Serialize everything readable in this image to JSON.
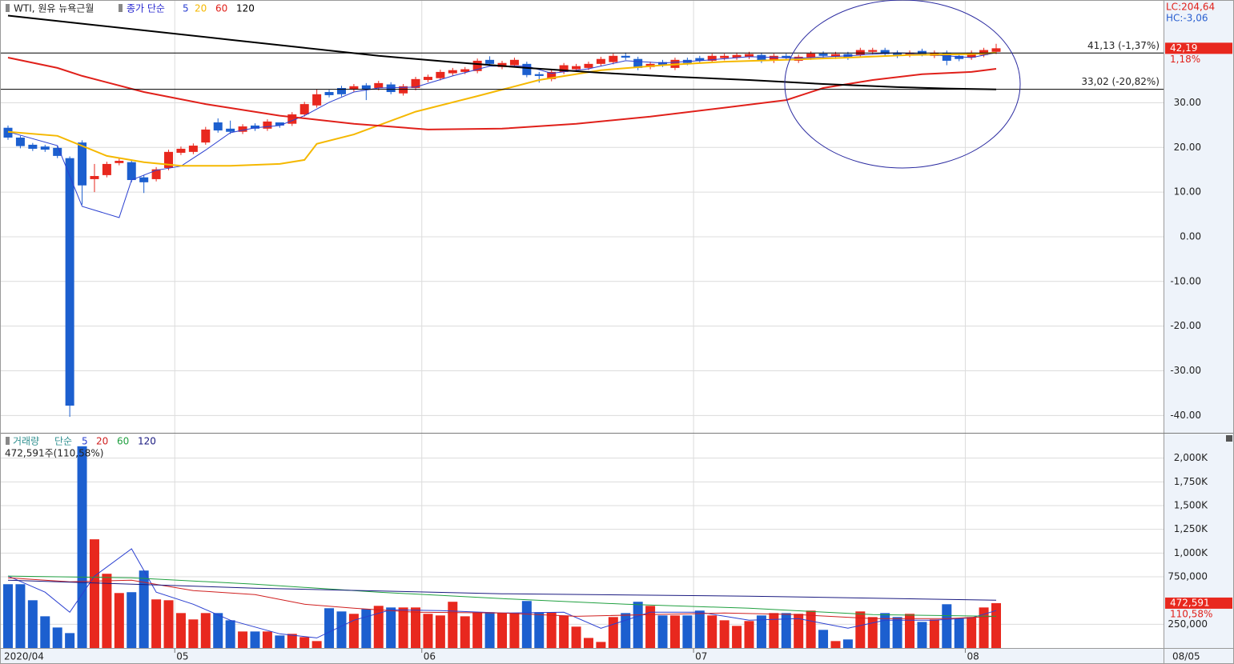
{
  "chart_data": [
    {
      "type": "candlestick",
      "title": "WTI, 원유 뉴욕근월",
      "indicator_label": "종가 단순",
      "categories": [
        "2020/04",
        null,
        null,
        null,
        null,
        null,
        null,
        null,
        null,
        null,
        null,
        null,
        null,
        null,
        "05",
        null,
        null,
        null,
        null,
        null,
        null,
        null,
        null,
        null,
        null,
        null,
        null,
        null,
        null,
        null,
        null,
        null,
        null,
        null,
        "06",
        null,
        null,
        null,
        null,
        null,
        null,
        null,
        null,
        null,
        null,
        null,
        null,
        null,
        null,
        null,
        null,
        null,
        null,
        null,
        null,
        null,
        "07",
        null,
        null,
        null,
        null,
        null,
        null,
        null,
        null,
        null,
        null,
        null,
        null,
        null,
        null,
        null,
        null,
        null,
        null,
        null,
        null,
        null,
        "08",
        null,
        null
      ],
      "open": [
        24.4,
        22.2,
        20.6,
        20.2,
        19.9,
        17.6,
        21.1,
        12.9,
        13.8,
        16.5,
        16.7,
        13.3,
        12.9,
        15.4,
        18.8,
        19.0,
        21.1,
        25.6,
        24.2,
        23.5,
        24.9,
        24.2,
        25.6,
        25.3,
        27.4,
        29.4,
        32.4,
        33.3,
        33.0,
        33.9,
        33.3,
        34.1,
        32.1,
        33.3,
        35.1,
        35.5,
        36.6,
        36.9,
        37.1,
        39.6,
        38.0,
        38.4,
        38.7,
        36.4,
        35.3,
        36.9,
        37.5,
        37.8,
        38.7,
        39.1,
        40.5,
        39.8,
        38.0,
        39.1,
        37.8,
        39.6,
        40.0,
        39.4,
        40.0,
        40.1,
        40.3,
        40.7,
        39.4,
        40.5,
        39.4,
        40.1,
        41.0,
        40.3,
        40.9,
        40.7,
        41.4,
        41.8,
        41.2,
        40.7,
        41.6,
        40.5,
        41.2,
        40.5,
        40.1,
        40.7,
        41.4
      ],
      "high": [
        24.9,
        22.6,
        21.0,
        20.6,
        20.4,
        18.0,
        21.6,
        16.3,
        16.8,
        17.5,
        17.2,
        13.8,
        15.6,
        19.5,
        20.2,
        20.9,
        24.6,
        26.5,
        26.0,
        25.2,
        25.4,
        26.3,
        25.4,
        27.9,
        30.2,
        33.0,
        32.9,
        33.8,
        34.2,
        34.4,
        34.9,
        34.6,
        34.2,
        35.8,
        36.3,
        37.4,
        37.8,
        38.0,
        39.9,
        40.4,
        39.4,
        40.1,
        39.2,
        36.9,
        37.4,
        38.9,
        38.7,
        39.2,
        40.3,
        41.0,
        41.2,
        40.3,
        39.2,
        39.6,
        40.1,
        40.1,
        40.5,
        41.0,
        41.0,
        41.2,
        41.4,
        41.2,
        41.0,
        41.0,
        40.8,
        41.5,
        41.5,
        41.4,
        41.4,
        42.3,
        42.3,
        42.3,
        41.7,
        41.7,
        42.1,
        41.7,
        41.7,
        41.0,
        41.7,
        42.3,
        43.2
      ],
      "low": [
        21.7,
        19.8,
        19.2,
        19.0,
        17.6,
        -40.3,
        7.2,
        10.0,
        13.3,
        16.0,
        12.2,
        9.8,
        12.4,
        14.9,
        18.3,
        18.5,
        20.6,
        23.3,
        23.0,
        23.0,
        23.7,
        23.7,
        24.4,
        24.8,
        26.9,
        28.9,
        31.2,
        31.4,
        32.5,
        30.6,
        32.8,
        31.9,
        31.6,
        32.8,
        34.6,
        35.0,
        36.1,
        36.4,
        36.6,
        38.2,
        37.5,
        37.9,
        35.7,
        34.5,
        34.8,
        36.4,
        37.0,
        37.3,
        38.2,
        38.6,
        39.6,
        37.3,
        37.5,
        38.0,
        37.3,
        38.4,
        38.9,
        38.9,
        39.5,
        39.6,
        39.8,
        38.9,
        38.9,
        39.5,
        38.9,
        39.6,
        40.0,
        39.8,
        39.6,
        40.2,
        40.9,
        40.4,
        40.0,
        40.2,
        40.4,
        40.0,
        38.4,
        39.3,
        39.6,
        40.2,
        40.9
      ],
      "close": [
        22.2,
        20.3,
        19.7,
        19.5,
        18.1,
        -37.8,
        11.5,
        13.6,
        16.3,
        17.0,
        12.7,
        12.2,
        15.1,
        19.0,
        19.7,
        20.4,
        24.0,
        23.8,
        23.5,
        24.7,
        24.2,
        25.8,
        24.9,
        27.4,
        29.7,
        31.9,
        31.7,
        31.9,
        33.7,
        33.0,
        34.4,
        32.4,
        33.7,
        35.3,
        35.8,
        36.9,
        37.3,
        37.5,
        39.4,
        38.7,
        38.9,
        39.6,
        36.2,
        36.0,
        36.9,
        38.4,
        38.2,
        38.7,
        39.8,
        40.5,
        40.1,
        37.8,
        38.7,
        38.5,
        39.6,
        38.9,
        39.4,
        40.5,
        40.5,
        40.7,
        40.9,
        39.4,
        40.5,
        40.0,
        40.3,
        41.0,
        40.5,
        40.9,
        40.1,
        41.8,
        41.8,
        40.9,
        40.5,
        41.2,
        40.9,
        41.2,
        39.4,
        39.8,
        41.2,
        41.8,
        42.19
      ],
      "up_color": "#e8281e",
      "down_color": "#1c5fcf",
      "series": [
        {
          "name": "5",
          "color": "#2a3fd0",
          "width": 1,
          "x": [
            0,
            4,
            6,
            9,
            10,
            12,
            14,
            16,
            18,
            20,
            22,
            24,
            26,
            28,
            30,
            33,
            36,
            39,
            42,
            44,
            47,
            50,
            53,
            56,
            60,
            64,
            68,
            72,
            76,
            78,
            80
          ],
          "values": [
            23.5,
            20.4,
            6.8,
            4.3,
            12.7,
            14.9,
            15.8,
            19.4,
            23.3,
            24.4,
            24.9,
            27.1,
            30.1,
            32.4,
            33.3,
            33.5,
            36.0,
            38.2,
            38.2,
            36.6,
            37.6,
            39.4,
            38.9,
            39.4,
            40.3,
            40.0,
            40.5,
            41.2,
            40.5,
            40.1,
            41.2
          ]
        },
        {
          "name": "20",
          "color": "#f5b800",
          "width": 2,
          "x": [
            0,
            4,
            8,
            11,
            14,
            18,
            22,
            24,
            25,
            28,
            33,
            38,
            43,
            48,
            53,
            58,
            63,
            68,
            73,
            78,
            80
          ],
          "values": [
            23.5,
            22.6,
            18.1,
            16.7,
            15.9,
            15.9,
            16.3,
            17.2,
            20.8,
            22.9,
            28.0,
            31.5,
            35.1,
            37.3,
            38.4,
            39.2,
            39.6,
            40.1,
            40.7,
            40.9,
            41.2
          ]
        },
        {
          "name": "60",
          "color": "#e0201a",
          "width": 2,
          "x": [
            0,
            4,
            6,
            11,
            16,
            22,
            28,
            34,
            40,
            46,
            52,
            58,
            63,
            66,
            70,
            74,
            78,
            80
          ],
          "values": [
            40.1,
            37.8,
            36.0,
            32.4,
            29.7,
            27.1,
            25.3,
            24.0,
            24.2,
            25.3,
            26.9,
            28.9,
            30.6,
            33.3,
            35.1,
            36.4,
            36.9,
            37.6
          ]
        },
        {
          "name": "120",
          "color": "#000000",
          "width": 2,
          "x": [
            0,
            6,
            12,
            18,
            24,
            30,
            36,
            42,
            48,
            54,
            60,
            66,
            72,
            76,
            80
          ],
          "values": [
            49.5,
            47.7,
            45.9,
            44.1,
            42.3,
            40.5,
            39.1,
            37.8,
            36.7,
            35.8,
            35.1,
            34.2,
            33.5,
            33.2,
            33.0
          ]
        }
      ],
      "ylim": [
        -43.7,
        53.0
      ],
      "yticks": [
        {
          "value": -40,
          "label": "-40.00"
        },
        {
          "value": -30,
          "label": "-30.00"
        },
        {
          "value": -20,
          "label": "-20.00"
        },
        {
          "value": -10,
          "label": "-10.00"
        },
        {
          "value": 0,
          "label": "0.00"
        },
        {
          "value": 10,
          "label": "10.00"
        },
        {
          "value": 20,
          "label": "20.00"
        },
        {
          "value": 30,
          "label": "30.00"
        }
      ],
      "grid": true,
      "ref_lines": [
        {
          "value": 41.13,
          "label": "41,13 (-1,37%)"
        },
        {
          "value": 33.02,
          "label": "33,02 (-20,82%)"
        }
      ],
      "last_value": {
        "value": 42.19,
        "label": "42,19"
      },
      "change_label": "1,18%",
      "lc_label": "LC:204,64",
      "hc_label": "HC:-3,06",
      "date_label": "08/05"
    },
    {
      "type": "bar",
      "title": "거래량",
      "indicator_label": "단순",
      "info_label": "472,591주(110,58%)",
      "values": [
        672000,
        672000,
        503000,
        334000,
        216000,
        157000,
        2125000,
        1145000,
        782000,
        579000,
        588000,
        816000,
        512000,
        503000,
        368000,
        301000,
        368000,
        368000,
        292000,
        174000,
        174000,
        174000,
        132000,
        149000,
        115000,
        73000,
        419000,
        385000,
        360000,
        410000,
        444000,
        427000,
        427000,
        427000,
        360000,
        343000,
        487000,
        334000,
        377000,
        377000,
        368000,
        368000,
        495000,
        377000,
        377000,
        343000,
        225000,
        106000,
        64000,
        326000,
        368000,
        487000,
        444000,
        343000,
        343000,
        343000,
        394000,
        343000,
        292000,
        233000,
        284000,
        343000,
        368000,
        368000,
        360000,
        394000,
        191000,
        73000,
        90000,
        385000,
        326000,
        368000,
        326000,
        360000,
        275000,
        301000,
        461000,
        309000,
        326000,
        427000,
        472591
      ],
      "up_color": "#e8281e",
      "down_color": "#1c5fcf",
      "series": [
        {
          "name": "5",
          "color": "#2a3fd0",
          "x": [
            0,
            3,
            5,
            7,
            10,
            12,
            15,
            18,
            22,
            25,
            28,
            31,
            35,
            40,
            45,
            48,
            52,
            56,
            60,
            64,
            68,
            71,
            75,
            78,
            80
          ],
          "values": [
            758000,
            588000,
            377000,
            758000,
            1045000,
            588000,
            461000,
            292000,
            149000,
            106000,
            292000,
            402000,
            394000,
            368000,
            377000,
            208000,
            377000,
            377000,
            292000,
            309000,
            208000,
            292000,
            292000,
            318000,
            394000
          ]
        },
        {
          "name": "20",
          "color": "#d02020",
          "x": [
            0,
            5,
            10,
            15,
            20,
            24,
            28,
            33,
            40,
            46,
            52,
            58,
            64,
            70,
            76,
            80
          ],
          "values": [
            740000,
            698000,
            715000,
            605000,
            563000,
            461000,
            419000,
            377000,
            368000,
            334000,
            351000,
            368000,
            351000,
            309000,
            309000,
            334000
          ]
        },
        {
          "name": "60",
          "color": "#20a040",
          "x": [
            0,
            10,
            20,
            30,
            40,
            50,
            60,
            70,
            80
          ],
          "values": [
            758000,
            740000,
            672000,
            588000,
            520000,
            461000,
            419000,
            351000,
            334000
          ]
        },
        {
          "name": "120",
          "color": "#1a1a80",
          "x": [
            0,
            20,
            40,
            60,
            80
          ],
          "values": [
            715000,
            630000,
            571000,
            546000,
            503000
          ]
        }
      ],
      "ylim": [
        0,
        2250000
      ],
      "yticks": [
        {
          "value": 250000,
          "label": "250,000"
        },
        {
          "value": 750000,
          "label": "750,000"
        },
        {
          "value": 1000000,
          "label": "1,000K"
        },
        {
          "value": 1250000,
          "label": "1,250K"
        },
        {
          "value": 1500000,
          "label": "1,500K"
        },
        {
          "value": 1750000,
          "label": "1,750K"
        },
        {
          "value": 2000000,
          "label": "2,000K"
        }
      ],
      "grid": true,
      "last_value": {
        "value": 472591,
        "label": "472,591"
      },
      "change_label": "110,58%"
    }
  ]
}
